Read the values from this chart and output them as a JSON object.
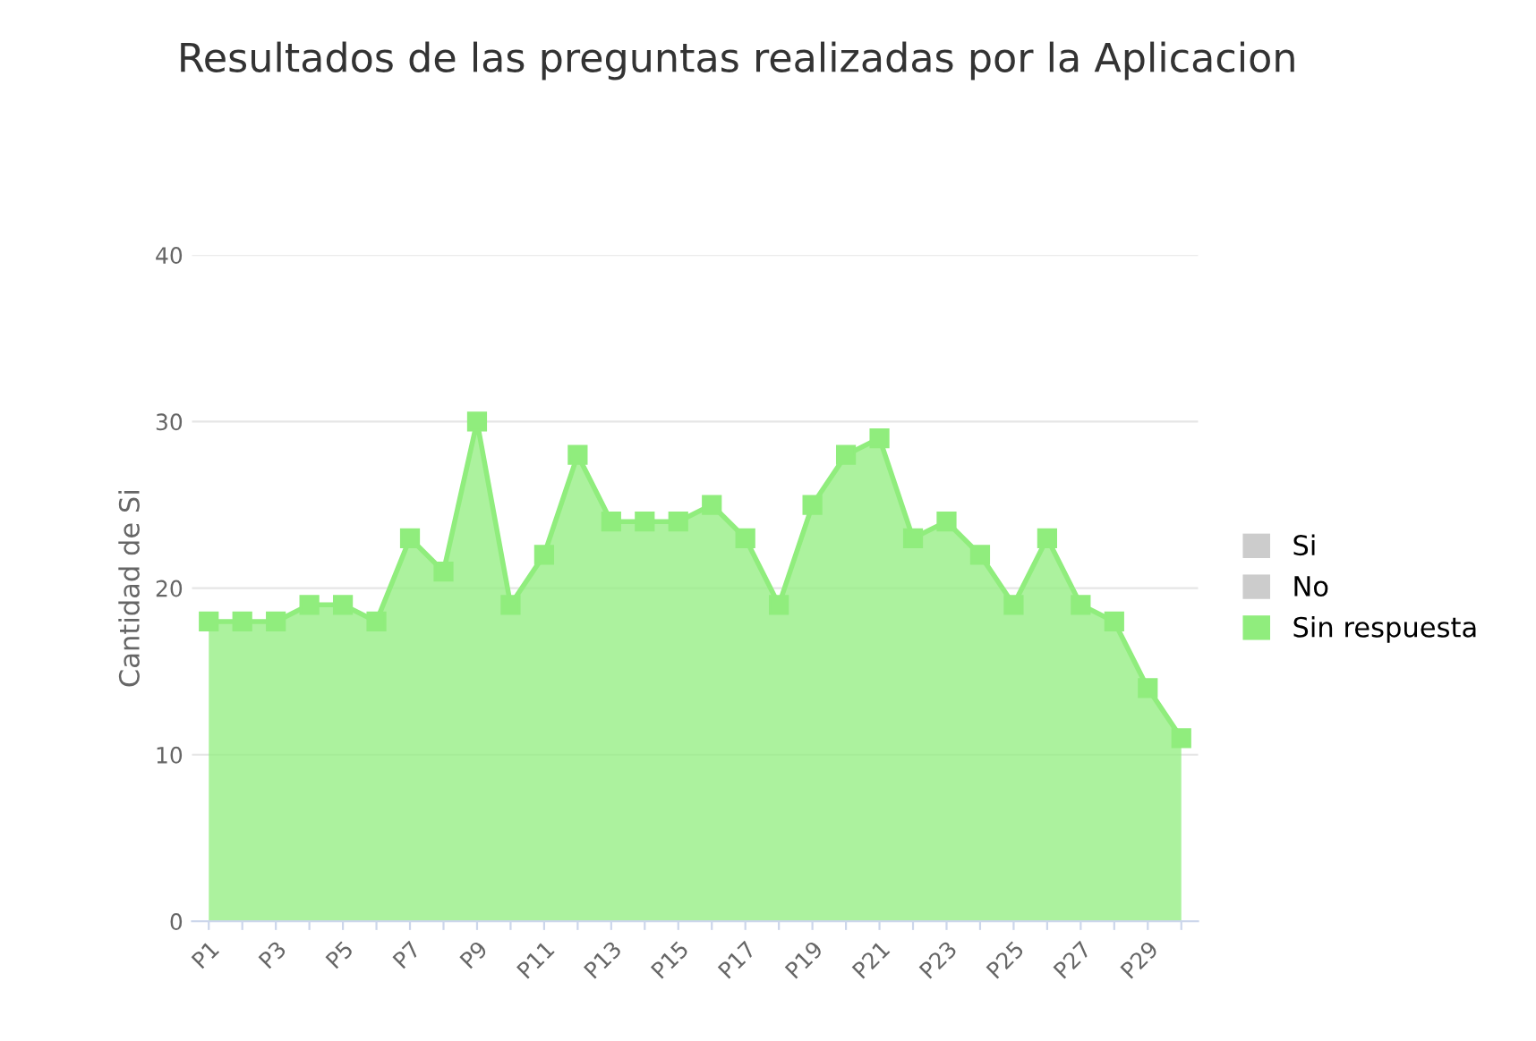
{
  "chart_data": {
    "type": "area",
    "title": "Resultados de las preguntas realizadas por la Aplicacion",
    "ylabel": "Cantidad de Si",
    "categories": [
      "P1",
      null,
      "P3",
      null,
      "P5",
      null,
      "P7",
      null,
      "P9",
      null,
      "P11",
      null,
      "P13",
      null,
      "P15",
      null,
      "P17",
      null,
      "P19",
      null,
      "P21",
      null,
      "P23",
      null,
      "P25",
      null,
      "P27",
      null,
      "P29",
      null
    ],
    "series": [
      {
        "name": "Si",
        "color": "#cccccc",
        "values": [
          null,
          null,
          null,
          null,
          null,
          null,
          null,
          null,
          null,
          null,
          null,
          null,
          null,
          null,
          null,
          null,
          null,
          null,
          null,
          null,
          null,
          null,
          null,
          null,
          null,
          null,
          null,
          null,
          null,
          null
        ]
      },
      {
        "name": "No",
        "color": "#cccccc",
        "values": [
          null,
          null,
          null,
          null,
          null,
          null,
          null,
          null,
          null,
          null,
          null,
          null,
          null,
          null,
          null,
          null,
          null,
          null,
          null,
          null,
          null,
          null,
          null,
          null,
          null,
          null,
          null,
          null,
          null,
          null
        ]
      },
      {
        "name": "Sin respuesta",
        "color": "#90ed7d",
        "values": [
          18,
          18,
          18,
          19,
          19,
          18,
          23,
          21,
          30,
          19,
          22,
          28,
          24,
          24,
          24,
          25,
          23,
          19,
          25,
          28,
          29,
          23,
          24,
          22,
          19,
          23,
          19,
          18,
          14,
          11
        ]
      }
    ],
    "ylim": [
      0,
      40
    ],
    "yticks": [
      0,
      10,
      20,
      30,
      40
    ],
    "grid": "y",
    "legend": "right",
    "marker": "square"
  }
}
